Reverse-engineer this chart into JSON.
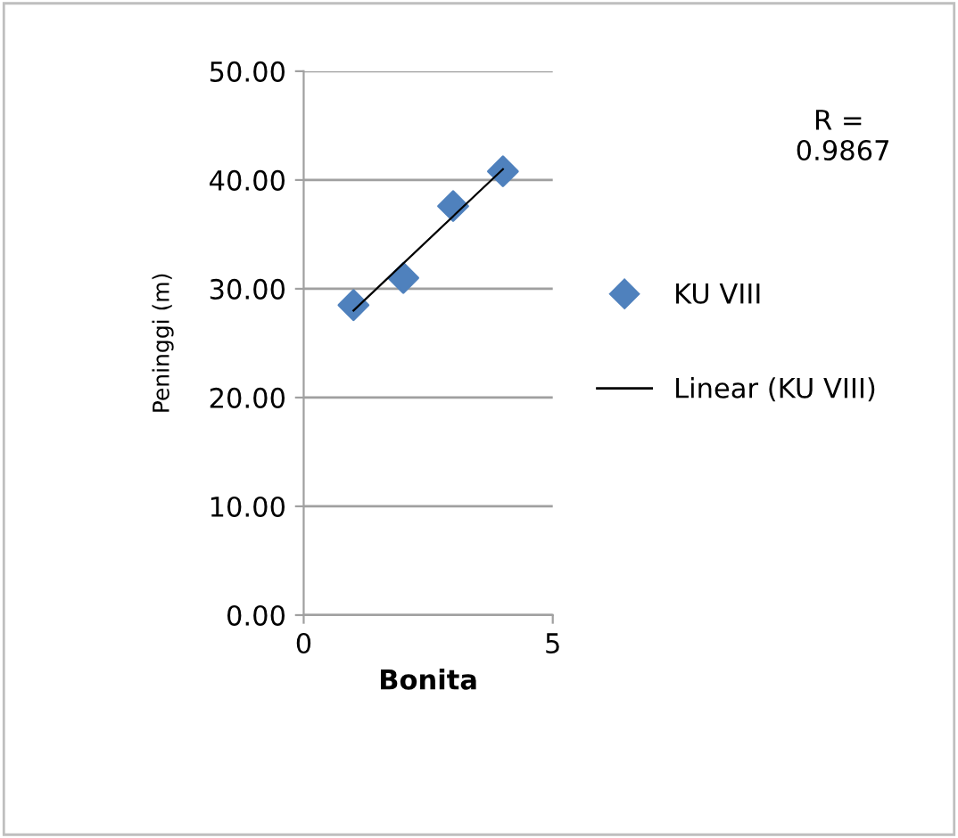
{
  "chart_data": {
    "type": "scatter",
    "xlabel": "Bonita",
    "ylabel": "Peninggi (m)",
    "x": [
      1,
      2,
      3,
      4
    ],
    "series": [
      {
        "name": "KU VIII",
        "color": "#4f81bd",
        "marker": "diamond",
        "values": [
          28.5,
          31.0,
          37.6,
          40.8
        ]
      },
      {
        "name": "Linear (KU VIII)",
        "type": "line",
        "color": "#000000",
        "x": [
          1,
          4
        ],
        "values": [
          28.0,
          41.0
        ],
        "marker": "none",
        "line_style": "solid"
      }
    ],
    "xlim": [
      0,
      5
    ],
    "xticks": [
      0,
      5
    ],
    "ylim": [
      0,
      50
    ],
    "yticks": [
      {
        "value": 0,
        "label": "0.00"
      },
      {
        "value": 10,
        "label": "10.00"
      },
      {
        "value": 20,
        "label": "20.00"
      },
      {
        "value": 30,
        "label": "30.00"
      },
      {
        "value": 40,
        "label": "40.00"
      },
      {
        "value": 50,
        "label": "50.00"
      }
    ],
    "grid": "y",
    "legend": "right",
    "annotations": [
      "R = \n0.9867"
    ]
  }
}
